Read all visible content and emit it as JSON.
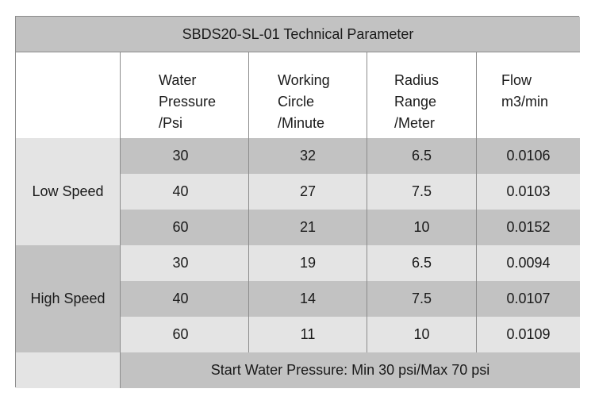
{
  "table": {
    "title": "SBDS20-SL-01 Technical Parameter",
    "headers": [
      "Water\nPressure\n/Psi",
      "Working\nCircle\n/Minute",
      "Radius\nRange\n/Meter",
      "Flow\nm3/min"
    ],
    "groups": [
      {
        "label": "Low Speed",
        "rows": [
          [
            "30",
            "32",
            "6.5",
            "0.0106"
          ],
          [
            "40",
            "27",
            "7.5",
            "0.0103"
          ],
          [
            "60",
            "21",
            "10",
            "0.0152"
          ]
        ]
      },
      {
        "label": "High Speed",
        "rows": [
          [
            "30",
            "19",
            "6.5",
            "0.0094"
          ],
          [
            "40",
            "14",
            "7.5",
            "0.0107"
          ],
          [
            "60",
            "11",
            "10",
            "0.0109"
          ]
        ]
      }
    ],
    "footer": "Start Water Pressure: Min 30 psi/Max 70 psi",
    "colors": {
      "dark_band": "#c2c2c2",
      "light_band": "#e4e4e4",
      "border": "#8c8c8c"
    }
  }
}
